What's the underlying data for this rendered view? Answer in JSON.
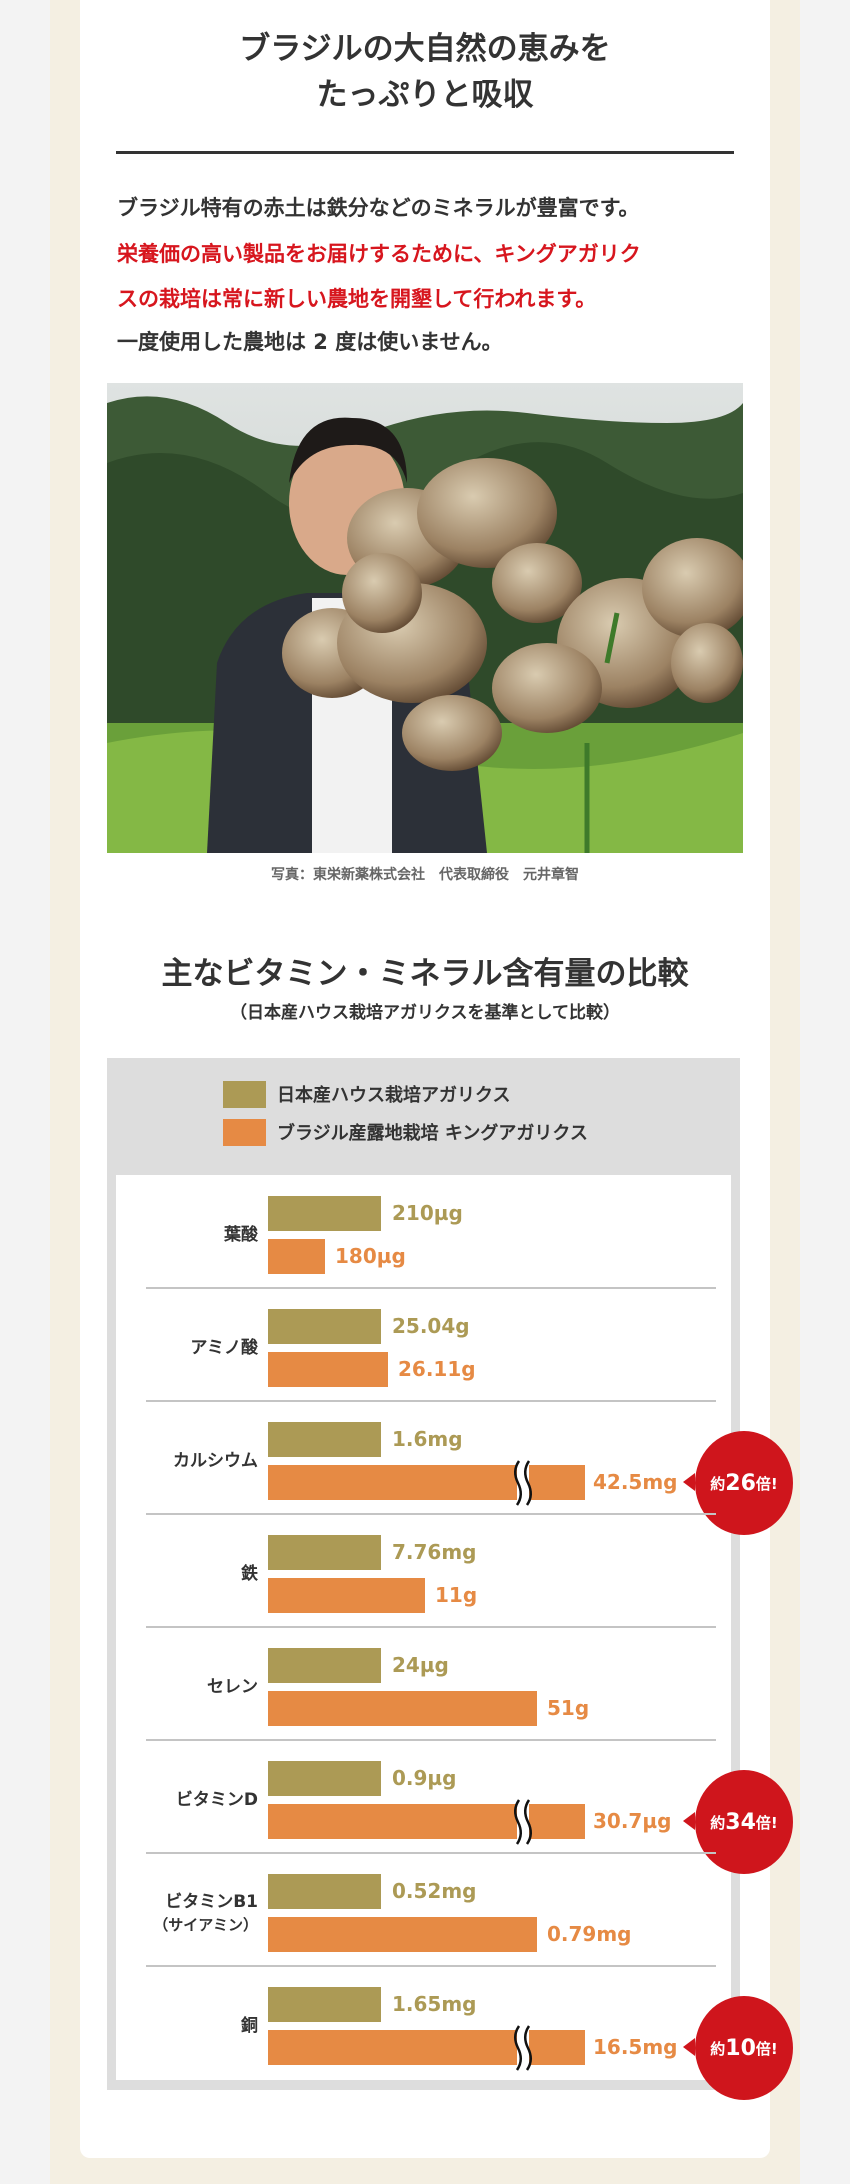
{
  "section1": {
    "title_lines": [
      "ブラジルの大自然の恵みを",
      "たっぷりと吸収"
    ],
    "paragraph": [
      {
        "text": "ブラジル特有の赤土は鉄分などのミネラルが豊富です。",
        "color": "#333333"
      },
      {
        "text": "栄養価の高い製品をお届けするために、キングアガリク",
        "color": "#d7161e"
      },
      {
        "text": "スの栽培は常に新しい農地を開墾して行われます。",
        "color": "#d7161e"
      },
      {
        "text": "一度使用した農地は 2 度は使いません。",
        "color": "#333333"
      }
    ],
    "photo_caption": "写真：東栄新薬株式会社　代表取締役　元井章智"
  },
  "section2": {
    "title": "主なビタミン・ミネラル含有量の比較",
    "subtitle": "（日本産ハウス栽培アガリクスを基準として比較）"
  },
  "chart_data": {
    "type": "bar",
    "orientation": "horizontal",
    "legend_placement": "top",
    "series": [
      {
        "name": "日本産ハウス栽培アガリクス",
        "color": "#ac9a55"
      },
      {
        "name": "ブラジル産露地栽培 キングアガリクス",
        "color": "#e68a44"
      }
    ],
    "categories": [
      {
        "label": "葉酸",
        "sub": "",
        "japan": "210µg",
        "brazil": "180µg",
        "broken": false,
        "badge": ""
      },
      {
        "label": "アミノ酸",
        "sub": "",
        "japan": "25.04g",
        "brazil": "26.11g",
        "broken": false,
        "badge": ""
      },
      {
        "label": "カルシウム",
        "sub": "",
        "japan": "1.6mg",
        "brazil": "42.5mg",
        "broken": true,
        "badge": {
          "prefix": "約",
          "num": "26",
          "suffix": "倍!"
        }
      },
      {
        "label": "鉄",
        "sub": "",
        "japan": "7.76mg",
        "brazil": "11g",
        "broken": false,
        "badge": ""
      },
      {
        "label": "セレン",
        "sub": "",
        "japan": "24µg",
        "brazil": "51g",
        "broken": false,
        "badge": ""
      },
      {
        "label": "ビタミンD",
        "sub": "",
        "japan": "0.9µg",
        "brazil": "30.7µg",
        "broken": true,
        "badge": {
          "prefix": "約",
          "num": "34",
          "suffix": "倍!"
        }
      },
      {
        "label": "ビタミンB1",
        "sub": "（サイアミン）",
        "japan": "0.52mg",
        "brazil": "0.79mg",
        "broken": false,
        "badge": ""
      },
      {
        "label": "銅",
        "sub": "",
        "japan": "1.65mg",
        "brazil": "16.5mg",
        "broken": true,
        "badge": {
          "prefix": "約",
          "num": "10",
          "suffix": "倍!"
        }
      }
    ]
  }
}
